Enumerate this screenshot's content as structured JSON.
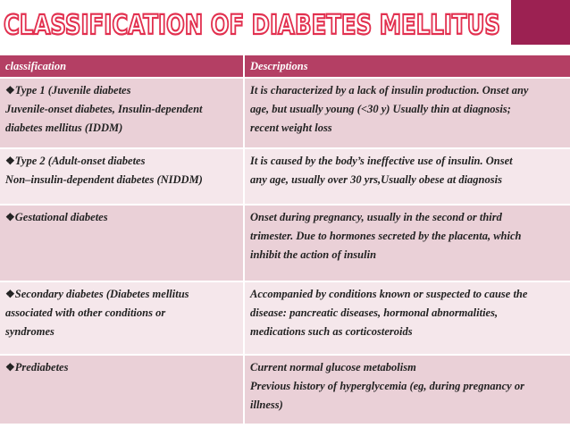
{
  "header": {
    "title": "CLASSIFICATION OF DIABETES MELLITUS"
  },
  "table": {
    "columns": [
      "classification",
      "Descriptions"
    ],
    "rows": [
      {
        "classification": [
          "Type 1 (Juvenile diabetes",
          "Juvenile-onset diabetes, Insulin-dependent",
          "diabetes mellitus (IDDM)"
        ],
        "description": [
          "It is characterized by a lack of insulin production. Onset any",
          "age, but usually young (<30 y) Usually thin at diagnosis;",
          "recent weight loss"
        ]
      },
      {
        "classification": [
          "Type 2 (Adult-onset diabetes",
          "Non–insulin-dependent diabetes (NIDDM)"
        ],
        "description": [
          "It is caused by the body’s ineffective use of insulin. Onset",
          "any age, usually over 30 yrs,Usually obese at diagnosis"
        ]
      },
      {
        "classification": [
          "Gestational diabetes"
        ],
        "description": [
          "Onset during pregnancy, usually in the second or third",
          "trimester. Due to hormones secreted by the placenta, which",
          "inhibit the action of insulin"
        ]
      },
      {
        "classification": [
          "Secondary diabetes (Diabetes mellitus",
          "associated with other conditions or",
          "syndromes"
        ],
        "description": [
          "Accompanied by conditions known or suspected to cause the",
          "disease: pancreatic diseases, hormonal abnormalities,",
          "medications such as corticosteroids"
        ]
      },
      {
        "classification": [
          "Prediabetes"
        ],
        "description": [
          "Current normal glucose metabolism",
          "Previous history of hyperglycemia (eg, during pregnancy or",
          "illness)"
        ]
      }
    ]
  }
}
